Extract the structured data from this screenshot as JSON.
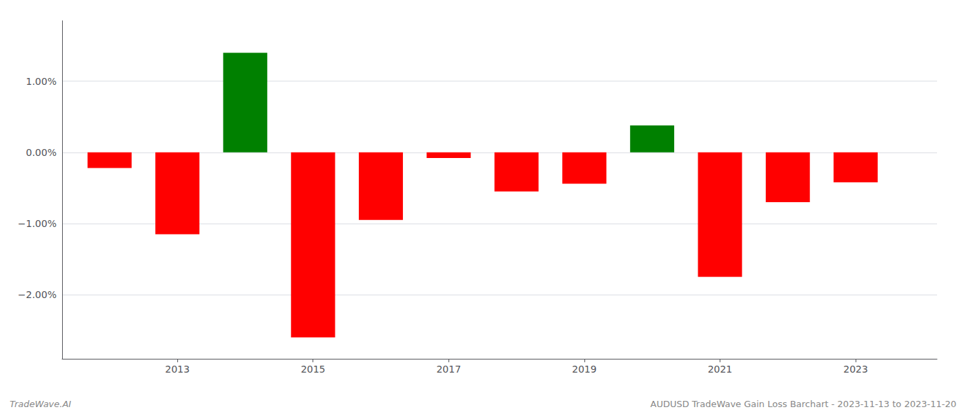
{
  "chart_data": {
    "type": "bar",
    "x": [
      2012,
      2013,
      2014,
      2015,
      2016,
      2017,
      2018,
      2019,
      2020,
      2021,
      2022,
      2023
    ],
    "values": [
      -0.0022,
      -0.0115,
      0.014,
      -0.026,
      -0.0095,
      -0.0008,
      -0.0055,
      -0.0044,
      0.0038,
      -0.0175,
      -0.007,
      -0.0042
    ],
    "colors": [
      "red",
      "red",
      "green",
      "red",
      "red",
      "red",
      "red",
      "red",
      "green",
      "red",
      "red",
      "red"
    ],
    "xlim": [
      2011.3,
      2024.2
    ],
    "xticks": [
      2013,
      2015,
      2017,
      2019,
      2021,
      2023
    ],
    "ylim": [
      -0.029,
      0.0185
    ],
    "yticks": [
      {
        "value": -0.02,
        "label": "−2.00%"
      },
      {
        "value": -0.01,
        "label": "−1.00%"
      },
      {
        "value": 0.0,
        "label": "0.00%"
      },
      {
        "value": 0.01,
        "label": "1.00%"
      }
    ],
    "grid": true,
    "annotations": [
      "TradeWave.AI",
      "AUDUSD TradeWave Gain Loss Barchart - 2023-11-13 to 2023-11-20"
    ]
  }
}
